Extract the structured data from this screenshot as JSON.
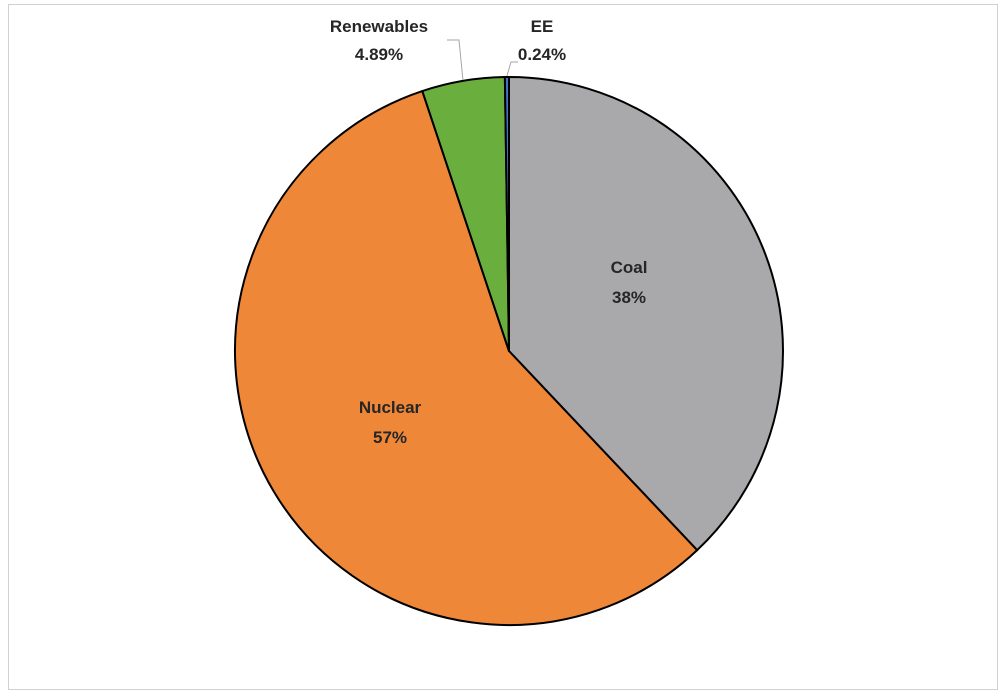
{
  "chart_data": {
    "type": "pie",
    "title": "",
    "slices": [
      {
        "name": "Coal",
        "value": 38,
        "value_label": "38%",
        "color": "#a9a8ab"
      },
      {
        "name": "Nuclear",
        "value": 57,
        "value_label": "57%",
        "color": "#ef8738"
      },
      {
        "name": "Renewables",
        "value": 4.89,
        "value_label": "4.89%",
        "color": "#6aaf3d"
      },
      {
        "name": "EE",
        "value": 0.24,
        "value_label": "0.24%",
        "color": "#4472c4"
      }
    ],
    "start": "12 o'clock",
    "direction": "clockwise",
    "legend": "none",
    "outline_color": "#000000"
  }
}
